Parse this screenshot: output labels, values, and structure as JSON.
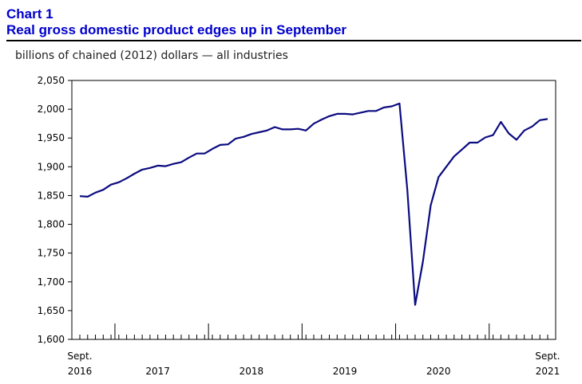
{
  "header": {
    "label": "Chart 1",
    "title": "Real gross domestic product edges up in September"
  },
  "chart_data": {
    "type": "line",
    "title": "Real gross domestic product edges up in September",
    "ylabel": "billions of chained (2012) dollars — all industries",
    "xlabel": "",
    "ylim": [
      1600,
      2050
    ],
    "yticks": [
      "1,600",
      "1,650",
      "1,700",
      "1,750",
      "1,800",
      "1,850",
      "1,900",
      "1,950",
      "2,000",
      "2,050"
    ],
    "xtick_labels": [
      {
        "month_index": 0,
        "top": "Sept.",
        "bottom": "2016"
      },
      {
        "month_index": 10,
        "top": "",
        "bottom": "2017"
      },
      {
        "month_index": 22,
        "top": "",
        "bottom": "2018"
      },
      {
        "month_index": 34,
        "top": "",
        "bottom": "2019"
      },
      {
        "month_index": 46,
        "top": "",
        "bottom": "2020"
      },
      {
        "month_index": 60,
        "top": "Sept.",
        "bottom": "2021"
      }
    ],
    "year_boundaries": [
      4,
      16,
      28,
      40,
      52
    ],
    "grid": false,
    "line_color": "#0b0b80",
    "series": [
      {
        "name": "Real GDP, all industries",
        "start": "Sept. 2016",
        "values": [
          1849,
          1848,
          1855,
          1860,
          1869,
          1873,
          1880,
          1888,
          1895,
          1898,
          1902,
          1901,
          1905,
          1908,
          1916,
          1923,
          1923,
          1931,
          1938,
          1939,
          1949,
          1952,
          1957,
          1960,
          1963,
          1969,
          1965,
          1965,
          1966,
          1963,
          1975,
          1982,
          1988,
          1992,
          1992,
          1991,
          1994,
          1997,
          1997,
          2003,
          2005,
          2010,
          1860,
          1660,
          1735,
          1833,
          1882,
          1900,
          1918,
          1930,
          1942,
          1942,
          1951,
          1955,
          1978,
          1958,
          1947,
          1963,
          1970,
          1981,
          1983
        ]
      }
    ]
  }
}
